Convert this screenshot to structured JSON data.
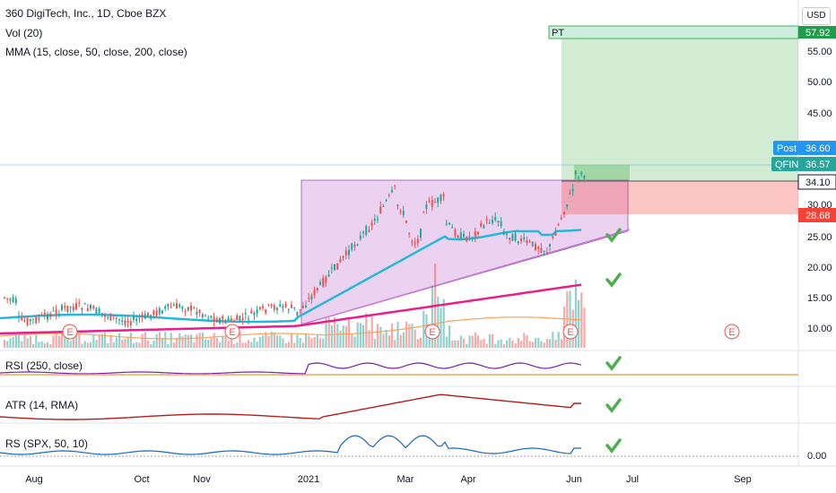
{
  "legend": {
    "title": "360 DigiTech, Inc., 1D, Cboe BZX",
    "volume": "Vol (20)",
    "mma": "MMA (15, close, 50, close, 200, close)"
  },
  "currency": "USD",
  "panes": {
    "rsi": "RSI (250, close)",
    "atr": "ATR (14, RMA)",
    "rs": "RS (SPX, 50, 10)"
  },
  "price_axis": [
    "55.00",
    "50.00",
    "45.00",
    "30.00",
    "25.00",
    "20.00",
    "15.00",
    "10.00"
  ],
  "rs_axis": "0.00",
  "time_axis": [
    "Aug",
    "Oct",
    "Nov",
    "2021",
    "Mar",
    "Apr",
    "Jun",
    "Jul",
    "Sep"
  ],
  "tags": {
    "pt_label": "PT",
    "pt_value": "57.92",
    "post_label": "Post",
    "post_value": "36.60",
    "ticker_label": "QFIN",
    "ticker_value": "36.57",
    "entry_value": "34.10",
    "stop_value": "28.68"
  },
  "earnings_marker": "E",
  "colors": {
    "up": "#26a69a",
    "down": "#ef5350",
    "ma_fast": "#f7a35c",
    "ma_mid": "#26b8d9",
    "ma_slow": "#e91e8c",
    "triangle": "#c77dd8",
    "target_zone": "#4caf50",
    "stop_zone": "#f44336",
    "rsi": "#7b1fa2",
    "atr": "#b71c1c",
    "rs": "#1565c0",
    "check": "#4caf50"
  }
}
